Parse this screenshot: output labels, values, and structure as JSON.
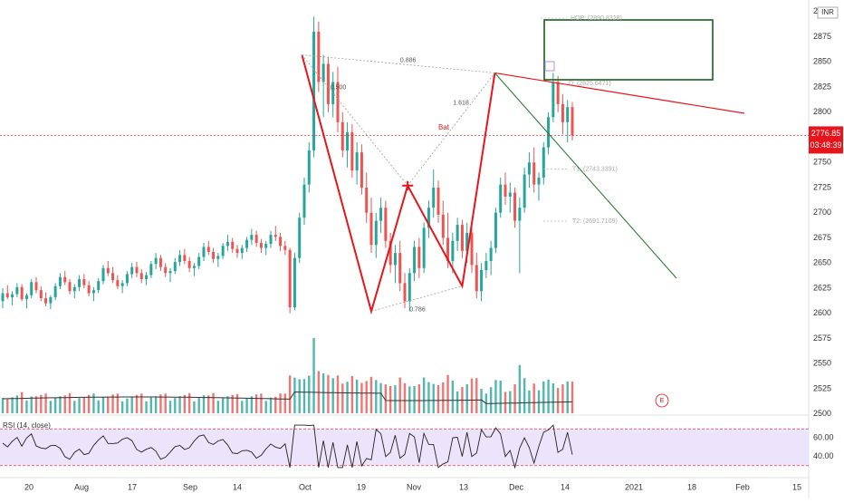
{
  "instrument": {
    "currency_badge": "INR",
    "last_price": "2776.85",
    "countdown": "03:48:39"
  },
  "colors": {
    "up": "#26a69a",
    "down": "#ef5350",
    "pattern": "#e8141b",
    "target_green": "#1b5e20",
    "fib_line": "#9e9e9e",
    "rsi_line": "#222222",
    "rsi_band": "#ece4fb",
    "ma": "#333333",
    "price_tag_bg": "#e8141b"
  },
  "price_axis": {
    "ticks": [
      2900,
      2875,
      2850,
      2825,
      2800,
      2775,
      2750,
      2725,
      2700,
      2675,
      2650,
      2625,
      2600,
      2575,
      2550,
      2525,
      2500
    ],
    "top_label": "0"
  },
  "rsi": {
    "label": "RSI (14, close)",
    "upper": 70,
    "lower": 30,
    "ticks": [
      "60.00",
      "40.00"
    ]
  },
  "time_axis": [
    "20",
    "Aug",
    "17",
    "Sep",
    "14",
    "Oct",
    "19",
    "Nov",
    "13",
    "Dec",
    "14",
    "2021",
    "18",
    "Feb",
    "15"
  ],
  "pattern": {
    "name": "Bat",
    "ratios": [
      "0.500",
      "1.618",
      "0.886",
      "0.786"
    ],
    "hop_label": "HOP: (2890.8328)",
    "d_label": "D: (2825.6471)",
    "t1_label": "T1: (2743.3391)",
    "t2_label": "T2: (2691.7109)",
    "events_marker": "E"
  },
  "chart_data": {
    "type": "candlestick",
    "y_axis_range": [
      2497,
      2907
    ],
    "rsi_range": [
      20,
      80
    ],
    "pattern_points": [
      {
        "point": "X",
        "price": 2857
      },
      {
        "point": "A",
        "price": 2602
      },
      {
        "point": "B",
        "price": 2727
      },
      {
        "point": "C",
        "price": 2627
      },
      {
        "point": "D",
        "price": 2839
      }
    ],
    "levels": {
      "last": 2776.85,
      "hop": 2890.8328,
      "d": 2825.6471,
      "t1": 2743.3391,
      "t2": 2691.7109
    },
    "sessions": [
      {
        "o": 2612,
        "h": 2625,
        "l": 2605,
        "c": 2620
      },
      {
        "o": 2620,
        "h": 2628,
        "l": 2614,
        "c": 2616
      },
      {
        "o": 2616,
        "h": 2622,
        "l": 2608,
        "c": 2619
      },
      {
        "o": 2619,
        "h": 2630,
        "l": 2616,
        "c": 2626
      },
      {
        "o": 2626,
        "h": 2629,
        "l": 2612,
        "c": 2614
      },
      {
        "o": 2614,
        "h": 2620,
        "l": 2605,
        "c": 2618
      },
      {
        "o": 2618,
        "h": 2634,
        "l": 2615,
        "c": 2631
      },
      {
        "o": 2631,
        "h": 2636,
        "l": 2620,
        "c": 2623
      },
      {
        "o": 2623,
        "h": 2627,
        "l": 2612,
        "c": 2615
      },
      {
        "o": 2615,
        "h": 2621,
        "l": 2607,
        "c": 2610
      },
      {
        "o": 2610,
        "h": 2618,
        "l": 2604,
        "c": 2616
      },
      {
        "o": 2616,
        "h": 2630,
        "l": 2613,
        "c": 2627
      },
      {
        "o": 2627,
        "h": 2640,
        "l": 2624,
        "c": 2636
      },
      {
        "o": 2636,
        "h": 2642,
        "l": 2628,
        "c": 2631
      },
      {
        "o": 2631,
        "h": 2634,
        "l": 2619,
        "c": 2622
      },
      {
        "o": 2622,
        "h": 2629,
        "l": 2615,
        "c": 2626
      },
      {
        "o": 2626,
        "h": 2638,
        "l": 2622,
        "c": 2634
      },
      {
        "o": 2634,
        "h": 2639,
        "l": 2625,
        "c": 2628
      },
      {
        "o": 2628,
        "h": 2632,
        "l": 2617,
        "c": 2620
      },
      {
        "o": 2620,
        "h": 2626,
        "l": 2612,
        "c": 2623
      },
      {
        "o": 2623,
        "h": 2635,
        "l": 2620,
        "c": 2632
      },
      {
        "o": 2632,
        "h": 2648,
        "l": 2629,
        "c": 2645
      },
      {
        "o": 2645,
        "h": 2652,
        "l": 2637,
        "c": 2640
      },
      {
        "o": 2640,
        "h": 2646,
        "l": 2630,
        "c": 2633
      },
      {
        "o": 2633,
        "h": 2638,
        "l": 2624,
        "c": 2627
      },
      {
        "o": 2627,
        "h": 2633,
        "l": 2620,
        "c": 2630
      },
      {
        "o": 2630,
        "h": 2642,
        "l": 2627,
        "c": 2639
      },
      {
        "o": 2639,
        "h": 2650,
        "l": 2635,
        "c": 2646
      },
      {
        "o": 2646,
        "h": 2651,
        "l": 2636,
        "c": 2640
      },
      {
        "o": 2640,
        "h": 2644,
        "l": 2630,
        "c": 2634
      },
      {
        "o": 2634,
        "h": 2641,
        "l": 2628,
        "c": 2638
      },
      {
        "o": 2638,
        "h": 2652,
        "l": 2635,
        "c": 2649
      },
      {
        "o": 2649,
        "h": 2660,
        "l": 2644,
        "c": 2655
      },
      {
        "o": 2655,
        "h": 2658,
        "l": 2642,
        "c": 2646
      },
      {
        "o": 2646,
        "h": 2650,
        "l": 2636,
        "c": 2640
      },
      {
        "o": 2640,
        "h": 2645,
        "l": 2631,
        "c": 2642
      },
      {
        "o": 2642,
        "h": 2655,
        "l": 2639,
        "c": 2651
      },
      {
        "o": 2651,
        "h": 2663,
        "l": 2647,
        "c": 2658
      },
      {
        "o": 2658,
        "h": 2664,
        "l": 2649,
        "c": 2652
      },
      {
        "o": 2652,
        "h": 2656,
        "l": 2641,
        "c": 2645
      },
      {
        "o": 2645,
        "h": 2650,
        "l": 2637,
        "c": 2647
      },
      {
        "o": 2647,
        "h": 2660,
        "l": 2644,
        "c": 2656
      },
      {
        "o": 2656,
        "h": 2670,
        "l": 2652,
        "c": 2666
      },
      {
        "o": 2666,
        "h": 2672,
        "l": 2658,
        "c": 2661
      },
      {
        "o": 2661,
        "h": 2665,
        "l": 2650,
        "c": 2654
      },
      {
        "o": 2654,
        "h": 2660,
        "l": 2646,
        "c": 2657
      },
      {
        "o": 2657,
        "h": 2670,
        "l": 2654,
        "c": 2667
      },
      {
        "o": 2667,
        "h": 2678,
        "l": 2662,
        "c": 2671
      },
      {
        "o": 2671,
        "h": 2675,
        "l": 2660,
        "c": 2664
      },
      {
        "o": 2664,
        "h": 2668,
        "l": 2655,
        "c": 2660
      },
      {
        "o": 2660,
        "h": 2668,
        "l": 2654,
        "c": 2665
      },
      {
        "o": 2665,
        "h": 2676,
        "l": 2661,
        "c": 2673
      },
      {
        "o": 2673,
        "h": 2684,
        "l": 2668,
        "c": 2678
      },
      {
        "o": 2678,
        "h": 2682,
        "l": 2666,
        "c": 2670
      },
      {
        "o": 2670,
        "h": 2674,
        "l": 2660,
        "c": 2665
      },
      {
        "o": 2665,
        "h": 2672,
        "l": 2658,
        "c": 2669
      },
      {
        "o": 2669,
        "h": 2682,
        "l": 2665,
        "c": 2678
      },
      {
        "o": 2678,
        "h": 2687,
        "l": 2672,
        "c": 2676
      },
      {
        "o": 2676,
        "h": 2680,
        "l": 2662,
        "c": 2667
      },
      {
        "o": 2667,
        "h": 2672,
        "l": 2658,
        "c": 2663
      },
      {
        "o": 2663,
        "h": 2665,
        "l": 2600,
        "c": 2606
      },
      {
        "o": 2606,
        "h": 2660,
        "l": 2603,
        "c": 2655
      },
      {
        "o": 2655,
        "h": 2700,
        "l": 2650,
        "c": 2695
      },
      {
        "o": 2695,
        "h": 2735,
        "l": 2688,
        "c": 2728
      },
      {
        "o": 2728,
        "h": 2770,
        "l": 2720,
        "c": 2762
      },
      {
        "o": 2762,
        "h": 2895,
        "l": 2755,
        "c": 2880
      },
      {
        "o": 2880,
        "h": 2890,
        "l": 2820,
        "c": 2830
      },
      {
        "o": 2830,
        "h": 2857,
        "l": 2795,
        "c": 2848
      },
      {
        "o": 2848,
        "h": 2855,
        "l": 2800,
        "c": 2808
      },
      {
        "o": 2808,
        "h": 2840,
        "l": 2795,
        "c": 2830
      },
      {
        "o": 2830,
        "h": 2845,
        "l": 2780,
        "c": 2790
      },
      {
        "o": 2790,
        "h": 2800,
        "l": 2755,
        "c": 2762
      },
      {
        "o": 2762,
        "h": 2790,
        "l": 2745,
        "c": 2780
      },
      {
        "o": 2780,
        "h": 2788,
        "l": 2735,
        "c": 2742
      },
      {
        "o": 2742,
        "h": 2770,
        "l": 2728,
        "c": 2760
      },
      {
        "o": 2760,
        "h": 2768,
        "l": 2718,
        "c": 2725
      },
      {
        "o": 2725,
        "h": 2740,
        "l": 2690,
        "c": 2700
      },
      {
        "o": 2700,
        "h": 2715,
        "l": 2660,
        "c": 2668
      },
      {
        "o": 2668,
        "h": 2700,
        "l": 2655,
        "c": 2692
      },
      {
        "o": 2692,
        "h": 2715,
        "l": 2680,
        "c": 2705
      },
      {
        "o": 2705,
        "h": 2712,
        "l": 2665,
        "c": 2672
      },
      {
        "o": 2672,
        "h": 2680,
        "l": 2640,
        "c": 2648
      },
      {
        "o": 2648,
        "h": 2668,
        "l": 2630,
        "c": 2660
      },
      {
        "o": 2660,
        "h": 2672,
        "l": 2622,
        "c": 2630
      },
      {
        "o": 2630,
        "h": 2640,
        "l": 2605,
        "c": 2612
      },
      {
        "o": 2612,
        "h": 2645,
        "l": 2602,
        "c": 2640
      },
      {
        "o": 2640,
        "h": 2672,
        "l": 2632,
        "c": 2666
      },
      {
        "o": 2666,
        "h": 2675,
        "l": 2635,
        "c": 2645
      },
      {
        "o": 2645,
        "h": 2690,
        "l": 2640,
        "c": 2685
      },
      {
        "o": 2685,
        "h": 2712,
        "l": 2675,
        "c": 2705
      },
      {
        "o": 2705,
        "h": 2743,
        "l": 2695,
        "c": 2725
      },
      {
        "o": 2725,
        "h": 2732,
        "l": 2690,
        "c": 2698
      },
      {
        "o": 2698,
        "h": 2712,
        "l": 2668,
        "c": 2675
      },
      {
        "o": 2675,
        "h": 2700,
        "l": 2645,
        "c": 2652
      },
      {
        "o": 2652,
        "h": 2680,
        "l": 2640,
        "c": 2672
      },
      {
        "o": 2672,
        "h": 2695,
        "l": 2662,
        "c": 2688
      },
      {
        "o": 2688,
        "h": 2693,
        "l": 2655,
        "c": 2662
      },
      {
        "o": 2662,
        "h": 2690,
        "l": 2650,
        "c": 2680
      },
      {
        "o": 2680,
        "h": 2688,
        "l": 2640,
        "c": 2648
      },
      {
        "o": 2648,
        "h": 2660,
        "l": 2615,
        "c": 2622
      },
      {
        "o": 2622,
        "h": 2650,
        "l": 2612,
        "c": 2643
      },
      {
        "o": 2643,
        "h": 2660,
        "l": 2635,
        "c": 2652
      },
      {
        "o": 2652,
        "h": 2672,
        "l": 2638,
        "c": 2665
      },
      {
        "o": 2665,
        "h": 2705,
        "l": 2660,
        "c": 2700
      },
      {
        "o": 2700,
        "h": 2735,
        "l": 2695,
        "c": 2728
      },
      {
        "o": 2728,
        "h": 2740,
        "l": 2708,
        "c": 2716
      },
      {
        "o": 2716,
        "h": 2730,
        "l": 2700,
        "c": 2720
      },
      {
        "o": 2720,
        "h": 2725,
        "l": 2685,
        "c": 2692
      },
      {
        "o": 2692,
        "h": 2715,
        "l": 2640,
        "c": 2705
      },
      {
        "o": 2705,
        "h": 2745,
        "l": 2700,
        "c": 2738
      },
      {
        "o": 2738,
        "h": 2760,
        "l": 2725,
        "c": 2750
      },
      {
        "o": 2750,
        "h": 2765,
        "l": 2720,
        "c": 2728
      },
      {
        "o": 2728,
        "h": 2740,
        "l": 2712,
        "c": 2735
      },
      {
        "o": 2735,
        "h": 2770,
        "l": 2728,
        "c": 2765
      },
      {
        "o": 2765,
        "h": 2800,
        "l": 2758,
        "c": 2795
      },
      {
        "o": 2795,
        "h": 2839,
        "l": 2790,
        "c": 2830
      },
      {
        "o": 2830,
        "h": 2836,
        "l": 2800,
        "c": 2808
      },
      {
        "o": 2808,
        "h": 2818,
        "l": 2778,
        "c": 2790
      },
      {
        "o": 2790,
        "h": 2812,
        "l": 2770,
        "c": 2805
      },
      {
        "o": 2805,
        "h": 2810,
        "l": 2772,
        "c": 2777
      }
    ]
  }
}
